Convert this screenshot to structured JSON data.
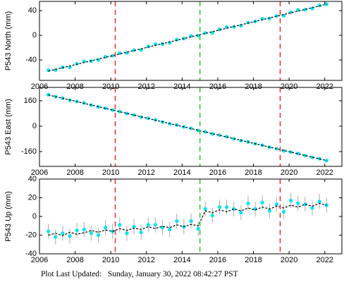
{
  "chart_data": [
    {
      "type": "scatter",
      "ylabel": "P543 North (mm)",
      "x": [
        2006.5,
        2006.9,
        2007.3,
        2007.7,
        2008.1,
        2008.5,
        2008.9,
        2009.3,
        2009.7,
        2010.1,
        2010.5,
        2010.9,
        2011.3,
        2011.7,
        2012.1,
        2012.5,
        2012.9,
        2013.3,
        2013.7,
        2014.1,
        2014.5,
        2014.9,
        2015.3,
        2015.7,
        2016.1,
        2016.5,
        2016.9,
        2017.3,
        2017.7,
        2018.1,
        2018.5,
        2018.9,
        2019.3,
        2019.7,
        2020.1,
        2020.5,
        2020.9,
        2021.3,
        2021.7,
        2022.1
      ],
      "series": [
        {
          "color": "#00e5ee",
          "error": 3,
          "values": [
            -56.5,
            -56.2,
            -51.9,
            -51.7,
            -45.9,
            -42.1,
            -41.8,
            -40.0,
            -34.8,
            -33.0,
            -28.7,
            -28.4,
            -24.1,
            -23.9,
            -18.1,
            -14.3,
            -14.0,
            -12.2,
            -7.0,
            -5.2,
            -0.9,
            -0.6,
            3.7,
            3.9,
            9.7,
            13.5,
            13.8,
            15.6,
            20.8,
            22.6,
            26.9,
            27.2,
            31.5,
            31.7,
            37.5,
            41.3,
            41.6,
            43.4,
            48.6,
            50.4
          ]
        },
        {
          "color": "#000000",
          "dashed": true,
          "values": [
            -58.0,
            -55.2,
            -52.4,
            -49.7,
            -46.9,
            -44.1,
            -41.3,
            -38.5,
            -35.8,
            -33.0,
            -30.2,
            -27.4,
            -24.6,
            -21.9,
            -19.1,
            -16.3,
            -13.5,
            -10.7,
            -8.0,
            -5.2,
            -2.4,
            0.4,
            3.2,
            5.9,
            8.7,
            11.5,
            14.3,
            17.1,
            19.8,
            22.6,
            25.4,
            28.2,
            31.0,
            33.7,
            36.5,
            39.3,
            42.1,
            44.9,
            47.6,
            50.4
          ]
        }
      ],
      "vlines": [
        {
          "x": 2010.25,
          "color": "#e8302a"
        },
        {
          "x": 2015.0,
          "color": "#2ec32e"
        },
        {
          "x": 2019.5,
          "color": "#e8302a"
        }
      ],
      "xlim": [
        2006,
        2023
      ],
      "xticks": [
        2006,
        2008,
        2010,
        2012,
        2014,
        2016,
        2018,
        2020,
        2022
      ],
      "ylim": [
        -73,
        55
      ],
      "yticks": [
        -40,
        0,
        40
      ]
    },
    {
      "type": "scatter",
      "ylabel": "P543 East (mm)",
      "x": [
        2006.5,
        2006.9,
        2007.3,
        2007.7,
        2008.1,
        2008.5,
        2008.9,
        2009.3,
        2009.7,
        2010.1,
        2010.5,
        2010.9,
        2011.3,
        2011.7,
        2012.1,
        2012.5,
        2012.9,
        2013.3,
        2013.7,
        2014.1,
        2014.5,
        2014.9,
        2015.3,
        2015.7,
        2016.1,
        2016.5,
        2016.9,
        2017.3,
        2017.7,
        2018.1,
        2018.5,
        2018.9,
        2019.3,
        2019.7,
        2020.1,
        2020.5,
        2020.9,
        2021.3,
        2021.7,
        2022.1
      ],
      "series": [
        {
          "color": "#00e5ee",
          "error": 3,
          "values": [
            198.5,
            185.4,
            176.3,
            163.2,
            155.6,
            146.0,
            132.9,
            121.3,
            113.2,
            101.6,
            92.5,
            79.4,
            70.3,
            57.2,
            49.6,
            40.0,
            26.9,
            15.3,
            7.2,
            -4.4,
            -13.5,
            -26.6,
            -35.7,
            -48.8,
            -56.4,
            -66.0,
            -79.1,
            -90.7,
            -98.8,
            -110.4,
            -119.5,
            -132.6,
            -141.7,
            -154.8,
            -162.4,
            -172.0,
            -185.1,
            -196.7,
            -204.8,
            -216.4
          ]
        },
        {
          "color": "#000000",
          "dashed": true,
          "values": [
            197.0,
            186.4,
            175.8,
            165.2,
            154.6,
            144.0,
            133.4,
            122.8,
            112.2,
            101.6,
            91.0,
            80.4,
            69.8,
            59.2,
            48.6,
            38.0,
            27.4,
            16.8,
            6.2,
            -4.4,
            -15.0,
            -25.6,
            -36.2,
            -46.8,
            -57.4,
            -68.0,
            -78.6,
            -89.2,
            -99.8,
            -110.4,
            -121.0,
            -131.6,
            -142.2,
            -152.8,
            -163.4,
            -174.0,
            -184.6,
            -195.2,
            -205.8,
            -216.4
          ]
        }
      ],
      "vlines": [
        {
          "x": 2010.25,
          "color": "#e8302a"
        },
        {
          "x": 2015.0,
          "color": "#2ec32e"
        },
        {
          "x": 2019.5,
          "color": "#e8302a"
        }
      ],
      "xlim": [
        2006,
        2023
      ],
      "xticks": [
        2006,
        2008,
        2010,
        2012,
        2014,
        2016,
        2018,
        2020,
        2022
      ],
      "ylim": [
        -253,
        244
      ],
      "yticks": [
        -160,
        0,
        160
      ]
    },
    {
      "type": "scatter",
      "ylabel": "P543 Up (mm)",
      "x": [
        2006.5,
        2006.9,
        2007.3,
        2007.7,
        2008.1,
        2008.5,
        2008.9,
        2009.3,
        2009.7,
        2010.1,
        2010.5,
        2010.9,
        2011.3,
        2011.7,
        2012.1,
        2012.5,
        2012.9,
        2013.3,
        2013.7,
        2014.1,
        2014.5,
        2014.9,
        2015.3,
        2015.7,
        2016.1,
        2016.5,
        2016.9,
        2017.3,
        2017.7,
        2018.1,
        2018.5,
        2018.9,
        2019.3,
        2019.7,
        2020.1,
        2020.5,
        2020.9,
        2021.3,
        2021.7,
        2022.1
      ],
      "series": [
        {
          "color": "#00e5ee",
          "error": 8,
          "values": [
            -16,
            -22,
            -18,
            -21,
            -15,
            -14,
            -18,
            -20,
            -12,
            -16,
            -9,
            -18,
            -11,
            -17,
            -9,
            -9,
            -12,
            -14,
            -5,
            -11,
            -5,
            -13,
            8,
            1,
            10,
            10,
            8,
            4,
            14,
            8,
            15,
            6,
            13,
            5,
            17,
            14,
            13,
            9,
            16,
            12
          ]
        },
        {
          "color": "#000000",
          "dashed": true,
          "values": [
            -20,
            -18,
            -20.5,
            -17,
            -19,
            -17.5,
            -15,
            -17,
            -14.5,
            -16,
            -13,
            -15,
            -12.5,
            -14,
            -11,
            -13,
            -10.5,
            -12,
            -9,
            -11,
            -8.5,
            -10,
            6,
            4,
            7,
            5,
            8,
            6,
            9,
            7,
            10,
            8,
            11,
            9,
            12,
            10,
            13,
            11,
            14,
            12
          ]
        }
      ],
      "vlines": [
        {
          "x": 2010.25,
          "color": "#e8302a"
        },
        {
          "x": 2015.0,
          "color": "#2ec32e"
        },
        {
          "x": 2019.5,
          "color": "#e8302a"
        }
      ],
      "xlim": [
        2006,
        2023
      ],
      "xticks": [
        2006,
        2008,
        2010,
        2012,
        2014,
        2016,
        2018,
        2020,
        2022
      ],
      "ylim": [
        -40,
        40
      ],
      "yticks": [
        -40,
        -20,
        0,
        20,
        40
      ]
    }
  ],
  "footer": "Plot Last Updated:   Sunday, January 30, 2022 08:42:27 PST"
}
